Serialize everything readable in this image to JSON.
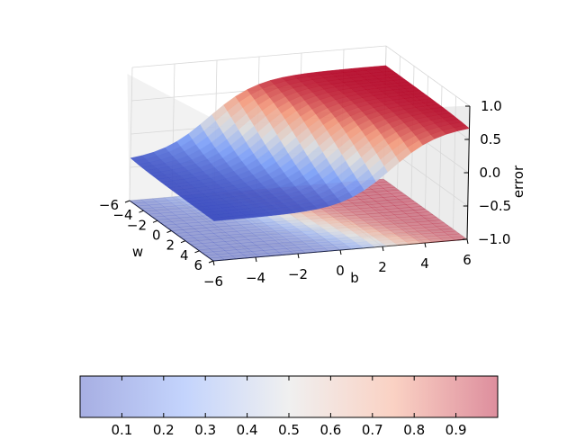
{
  "chart_data": {
    "type": "surface3d",
    "xlabel": "w",
    "ylabel": "b",
    "zlabel": "error",
    "xlim": [
      -6,
      6
    ],
    "ylim": [
      -6,
      6
    ],
    "zlim": [
      -1,
      1
    ],
    "x_ticks": [
      "−6",
      "−4",
      "−2",
      "0",
      "2",
      "4",
      "6"
    ],
    "y_ticks": [
      "−6",
      "−4",
      "−2",
      "0",
      "2",
      "4",
      "6"
    ],
    "z_ticks": [
      "−1.0",
      "−0.5",
      "0.0",
      "0.5",
      "1.0"
    ],
    "colormap": "coolwarm",
    "colorbar": {
      "range": [
        0,
        1
      ],
      "ticks": [
        "0.1",
        "0.2",
        "0.3",
        "0.4",
        "0.5",
        "0.6",
        "0.7",
        "0.8",
        "0.9"
      ]
    },
    "colors": {
      "low": "#3b4cc0",
      "mid": "#dddddd",
      "high": "#b40426"
    }
  }
}
